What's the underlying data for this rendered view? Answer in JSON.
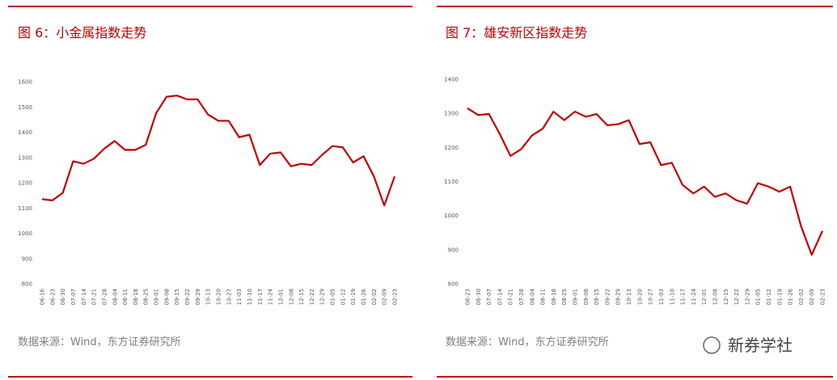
{
  "chart_data": [
    {
      "type": "line",
      "title": "图 6：小金属指数走势",
      "categories": [
        "06-16",
        "06-23",
        "06-30",
        "07-07",
        "07-14",
        "07-21",
        "07-28",
        "08-04",
        "08-11",
        "08-18",
        "08-25",
        "09-01",
        "09-08",
        "09-15",
        "09-22",
        "09-29",
        "10-13",
        "10-20",
        "10-27",
        "11-03",
        "11-10",
        "11-17",
        "11-24",
        "12-01",
        "12-08",
        "12-15",
        "12-22",
        "12-29",
        "01-05",
        "01-12",
        "01-19",
        "01-26",
        "02-02",
        "02-09",
        "02-23"
      ],
      "values": [
        1135,
        1130,
        1160,
        1285,
        1275,
        1295,
        1335,
        1365,
        1330,
        1330,
        1350,
        1475,
        1540,
        1545,
        1530,
        1530,
        1470,
        1445,
        1445,
        1380,
        1390,
        1270,
        1315,
        1320,
        1265,
        1275,
        1270,
        1310,
        1345,
        1340,
        1280,
        1305,
        1225,
        1110,
        1225
      ],
      "color": "#c00000",
      "ylim": [
        800,
        1600
      ],
      "yticks": [
        800,
        900,
        1000,
        1100,
        1200,
        1300,
        1400,
        1500,
        1600
      ],
      "source": "数据来源：Wind，东方证券研究所"
    },
    {
      "type": "line",
      "title": "图 7：雄安新区指数走势",
      "categories": [
        "06-23",
        "06-30",
        "07-07",
        "07-14",
        "07-21",
        "07-28",
        "08-04",
        "08-11",
        "08-18",
        "08-25",
        "09-01",
        "09-08",
        "09-15",
        "09-22",
        "09-29",
        "10-13",
        "10-20",
        "10-27",
        "11-03",
        "11-10",
        "11-17",
        "11-24",
        "12-01",
        "12-08",
        "12-15",
        "12-22",
        "12-29",
        "01-05",
        "01-12",
        "01-19",
        "01-26",
        "02-02",
        "02-09",
        "02-23"
      ],
      "values": [
        1315,
        1295,
        1298,
        1240,
        1175,
        1195,
        1235,
        1255,
        1305,
        1280,
        1305,
        1290,
        1298,
        1265,
        1268,
        1280,
        1210,
        1215,
        1148,
        1155,
        1090,
        1065,
        1085,
        1055,
        1065,
        1045,
        1035,
        1095,
        1085,
        1070,
        1085,
        970,
        885,
        955
      ],
      "color": "#c00000",
      "ylim": [
        800,
        1400
      ],
      "yticks": [
        800,
        900,
        1000,
        1100,
        1200,
        1300,
        1400
      ],
      "source": "数据来源：Wind，东方证券研究所"
    }
  ],
  "watermark": "新券学社"
}
